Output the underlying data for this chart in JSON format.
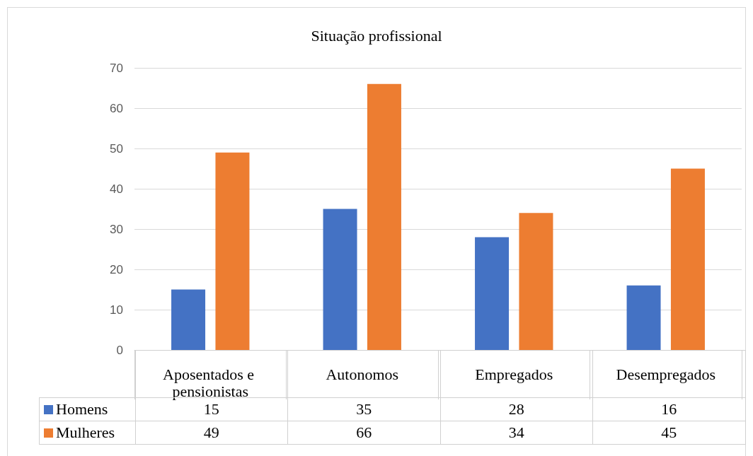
{
  "chart_data": {
    "type": "bar",
    "title": "Situação profissional",
    "categories": [
      "Aposentados e pensionistas",
      "Autonomos",
      "Empregados",
      "Desempregados"
    ],
    "series": [
      {
        "name": "Homens",
        "color": "#4472c4",
        "values": [
          15,
          35,
          28,
          16
        ]
      },
      {
        "name": "Mulheres",
        "color": "#ed7d31",
        "values": [
          49,
          66,
          34,
          45
        ]
      }
    ],
    "ylim": [
      0,
      70
    ],
    "yticks": [
      0,
      10,
      20,
      30,
      40,
      50,
      60,
      70
    ],
    "grid": "y",
    "legend": "bottom",
    "data_labels": true
  }
}
